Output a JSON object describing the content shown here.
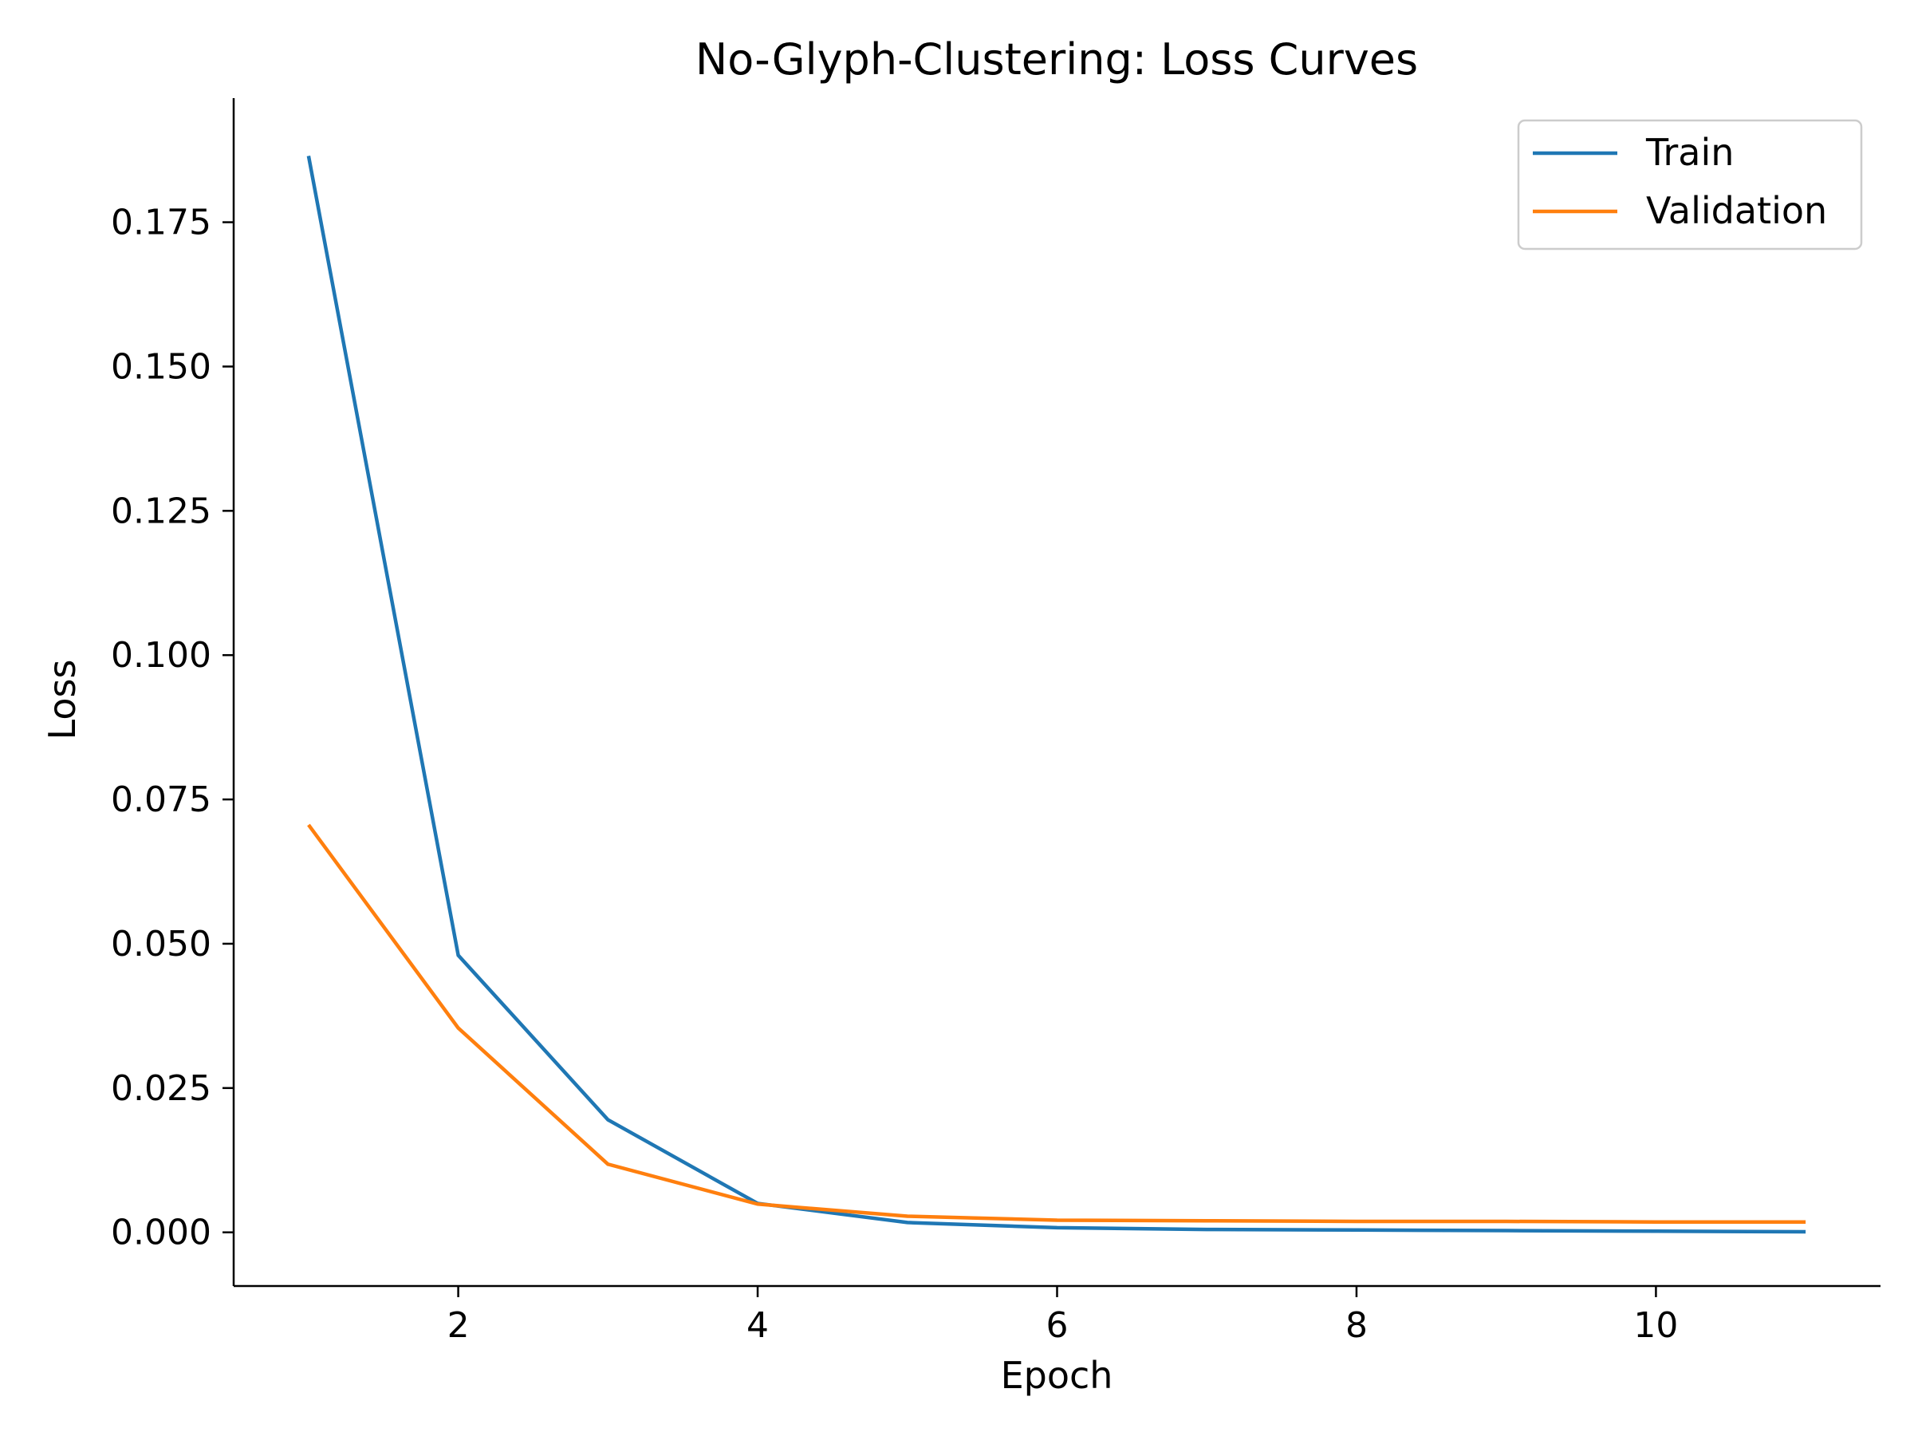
{
  "chart_data": {
    "type": "line",
    "title": "No-Glyph-Clustering: Loss Curves",
    "xlabel": "Epoch",
    "ylabel": "Loss",
    "xlim": [
      0.5,
      11.5
    ],
    "ylim": [
      -0.0093,
      0.1965
    ],
    "x_ticks": [
      2,
      4,
      6,
      8,
      10
    ],
    "x_tick_labels": [
      "2",
      "4",
      "6",
      "8",
      "10"
    ],
    "y_ticks": [
      0.0,
      0.025,
      0.05,
      0.075,
      0.1,
      0.125,
      0.15,
      0.175
    ],
    "y_tick_labels": [
      "0.000",
      "0.025",
      "0.050",
      "0.075",
      "0.100",
      "0.125",
      "0.150",
      "0.175"
    ],
    "grid": false,
    "legend_position": "top-right",
    "x": [
      1,
      2,
      3,
      4,
      5,
      6,
      7,
      8,
      9,
      10,
      11
    ],
    "series": [
      {
        "name": "Train",
        "color": "#1f77b4",
        "values": [
          0.1865,
          0.048,
          0.0195,
          0.005,
          0.0017,
          0.0008,
          0.0005,
          0.0004,
          0.0003,
          0.0002,
          0.0001
        ]
      },
      {
        "name": "Validation",
        "color": "#ff7f0e",
        "values": [
          0.0706,
          0.0354,
          0.0118,
          0.0049,
          0.0028,
          0.0021,
          0.002,
          0.0019,
          0.0019,
          0.0018,
          0.0018
        ]
      }
    ]
  }
}
